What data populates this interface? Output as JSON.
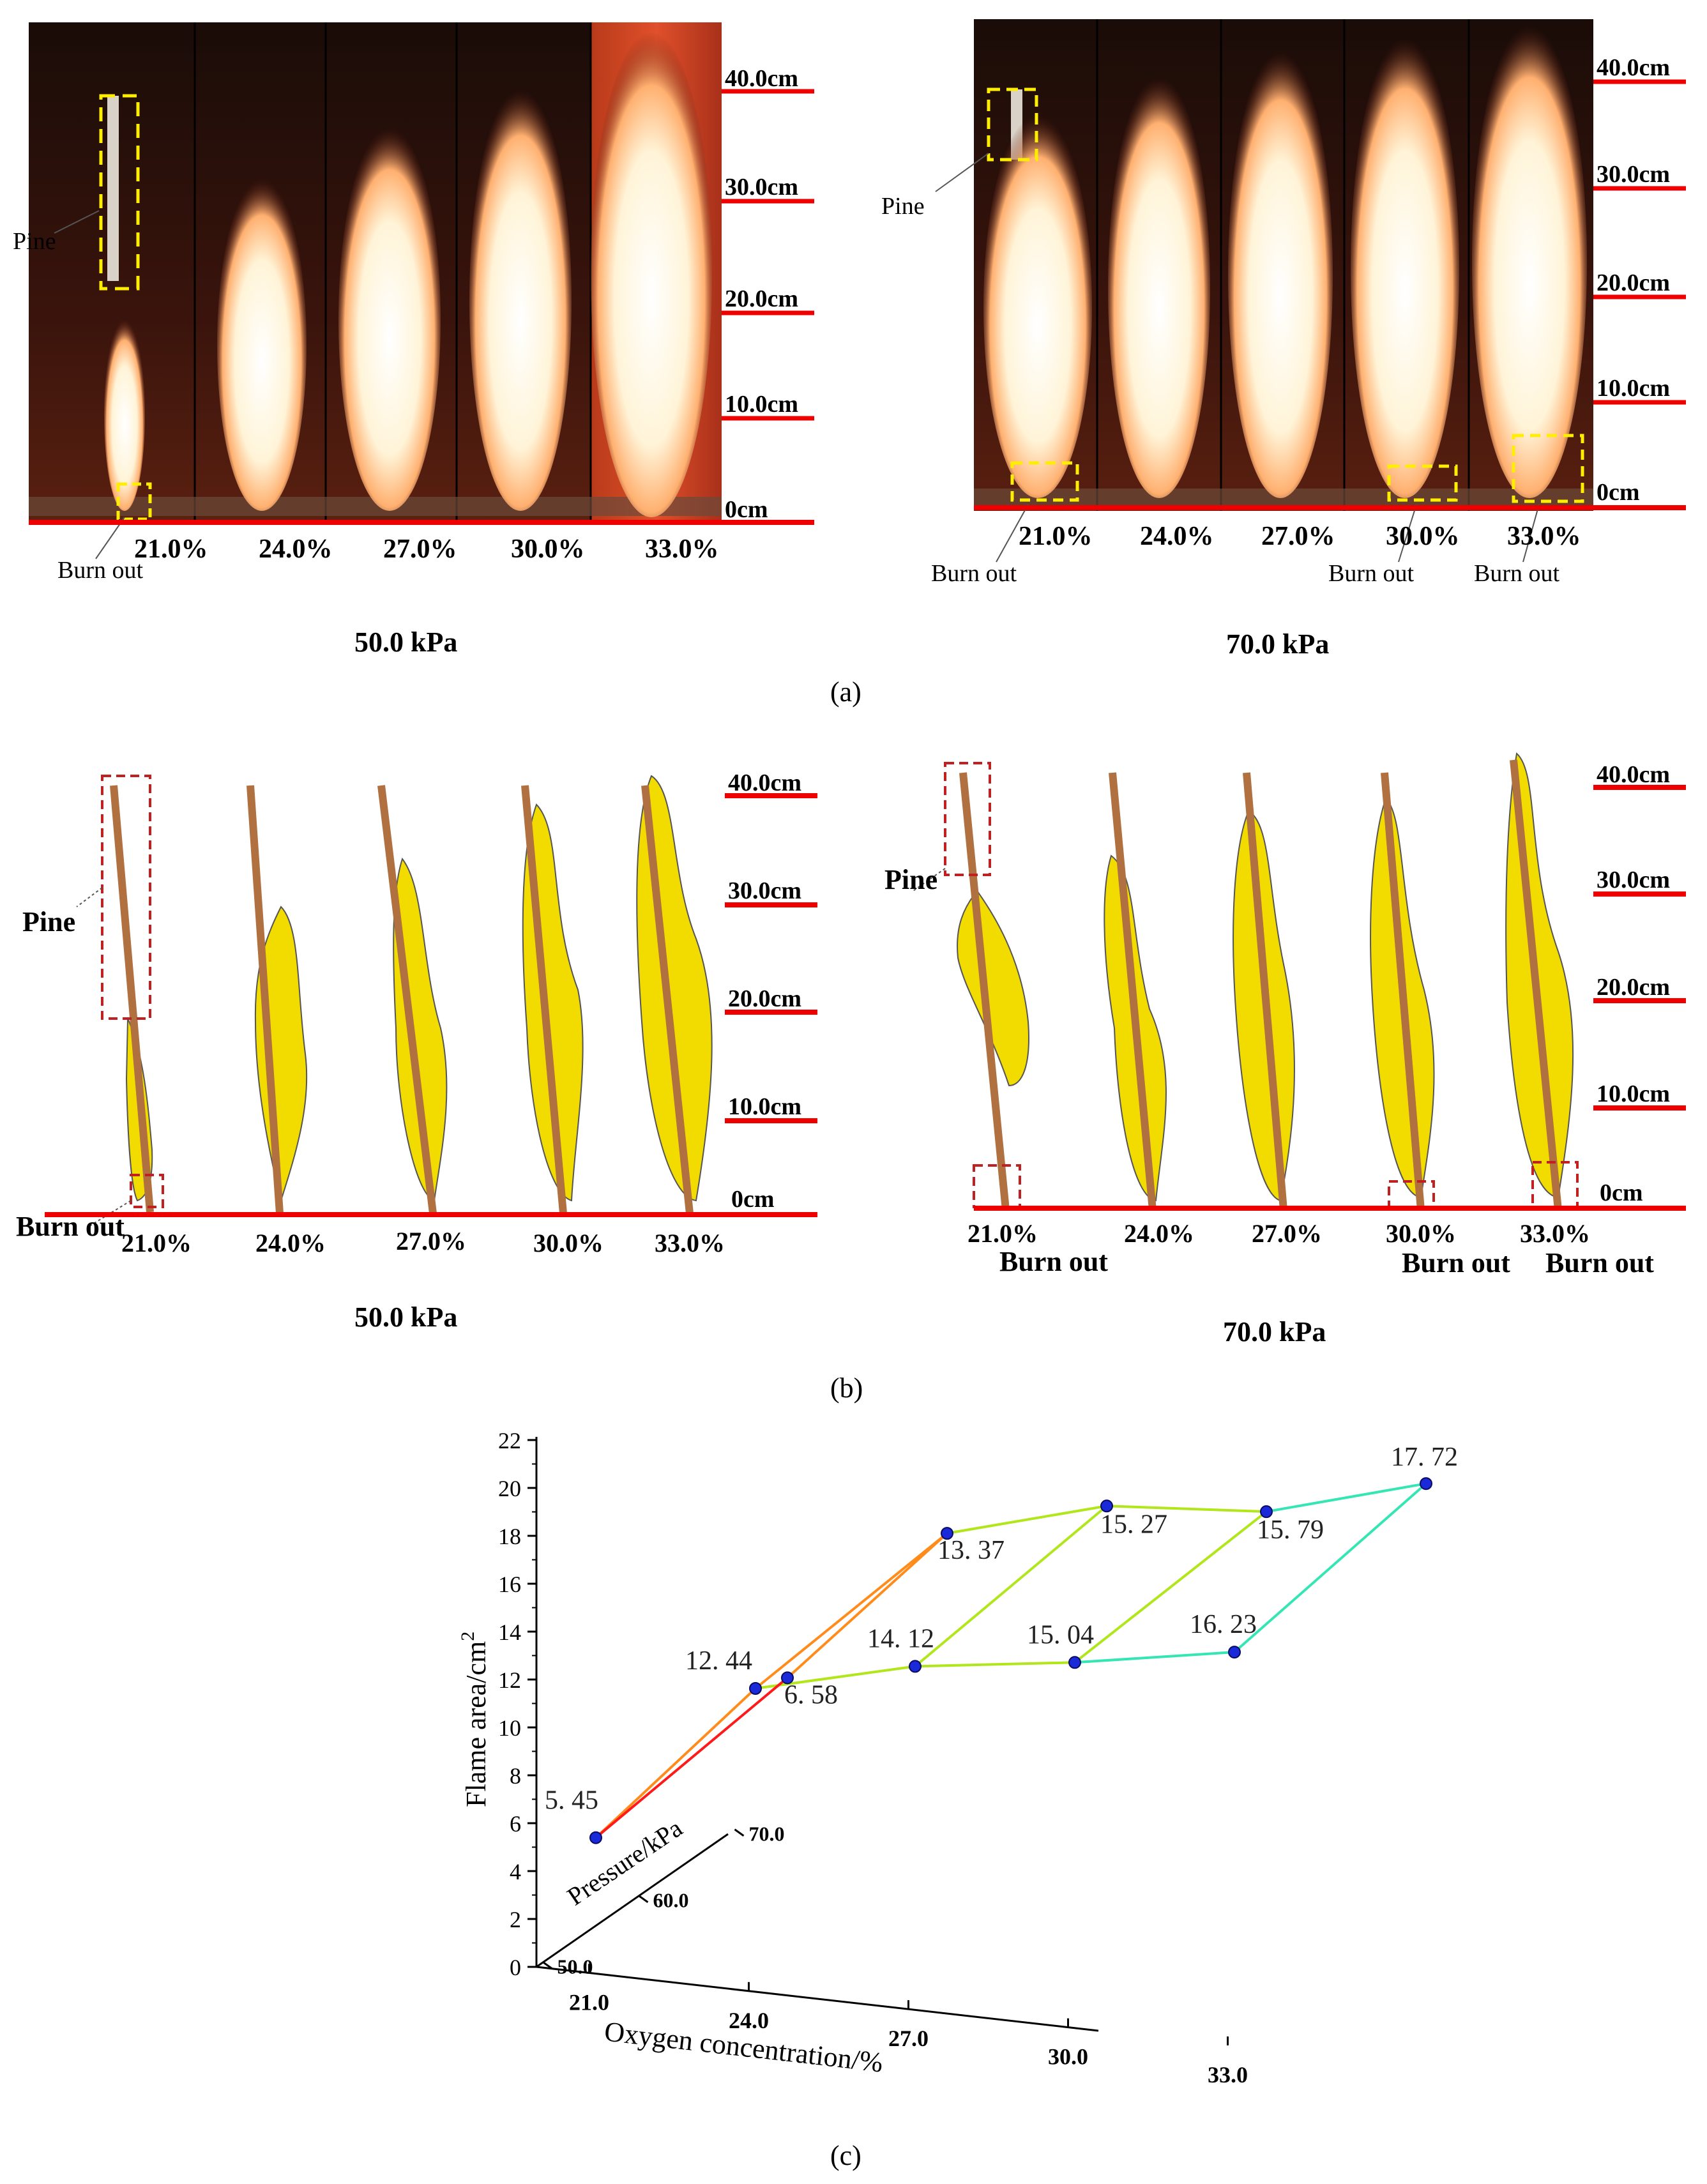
{
  "photo_panel": {
    "left": {
      "oxygen_labels": [
        "21.0%",
        "24.0%",
        "27.0%",
        "30.0%",
        "33.0%"
      ],
      "scale_labels": [
        "40.0cm",
        "30.0cm",
        "20.0cm",
        "10.0cm",
        "0cm"
      ],
      "pine_label": "Pine",
      "burnout_labels": [
        "Burn out"
      ],
      "pressure_label": "50.0 kPa"
    },
    "right": {
      "oxygen_labels": [
        "21.0%",
        "24.0%",
        "27.0%",
        "30.0%",
        "33.0%"
      ],
      "scale_labels": [
        "40.0cm",
        "30.0cm",
        "20.0cm",
        "10.0cm",
        "0cm"
      ],
      "pine_label": "Pine",
      "burnout_labels": [
        "Burn out",
        "Burn out",
        "Burn out"
      ],
      "pressure_label": "70.0 kPa"
    },
    "caption": "(a)"
  },
  "outline_panel": {
    "left": {
      "oxygen_labels": [
        "21.0%",
        "24.0%",
        "27.0%",
        "30.0%",
        "33.0%"
      ],
      "scale_labels": [
        "40.0cm",
        "30.0cm",
        "20.0cm",
        "10.0cm",
        "0cm"
      ],
      "pine_label": "Pine",
      "burnout_labels": [
        "Burn out"
      ],
      "pressure_label": "50.0 kPa"
    },
    "right": {
      "oxygen_labels": [
        "21.0%",
        "24.0%",
        "27.0%",
        "30.0%",
        "33.0%"
      ],
      "scale_labels": [
        "40.0cm",
        "30.0cm",
        "20.0cm",
        "10.0cm",
        "0cm"
      ],
      "pine_label": "Pine",
      "burnout_labels": [
        "Burn out",
        "Burn out",
        "Burn out"
      ],
      "pressure_label": "70.0 kPa"
    },
    "caption": "(b)"
  },
  "chart_data": {
    "type": "scatter3d",
    "ylabel": "Flame area/cm2",
    "ylabel_main": "Flame area/cm",
    "ylabel_sup": "2",
    "xlabel": "Oxygen concentration/%",
    "zlabel": "Pressure/kPa",
    "x_ticks": [
      "21.0",
      "24.0",
      "27.0",
      "30.0",
      "33.0"
    ],
    "z_ticks": [
      "50.0",
      "60.0",
      "70.0"
    ],
    "y_ticks": [
      "0",
      "2",
      "4",
      "6",
      "8",
      "10",
      "12",
      "14",
      "16",
      "18",
      "20",
      "22"
    ],
    "ylim": [
      0,
      22
    ],
    "series": [
      {
        "name": "50.0 kPa",
        "pressure": 50.0,
        "oxygen": [
          21.0,
          24.0,
          27.0,
          30.0,
          33.0
        ],
        "values": [
          5.45,
          12.44,
          14.12,
          15.04,
          16.23
        ]
      },
      {
        "name": "70.0 kPa",
        "pressure": 70.0,
        "oxygen": [
          21.0,
          24.0,
          27.0,
          30.0,
          33.0
        ],
        "values": [
          6.58,
          13.37,
          15.27,
          15.79,
          17.72
        ]
      }
    ],
    "point_labels": [
      {
        "text": "5. 45"
      },
      {
        "text": "12. 44"
      },
      {
        "text": "14. 12"
      },
      {
        "text": "15. 04"
      },
      {
        "text": "16. 23"
      },
      {
        "text": "6. 58"
      },
      {
        "text": "13. 37"
      },
      {
        "text": "15. 27"
      },
      {
        "text": "15. 79"
      },
      {
        "text": "17. 72"
      }
    ],
    "segment_colors": [
      "#ff1a1a",
      "#ff8c1a",
      "#b0e61a",
      "#b0e61a",
      "#33e6b3",
      "#33e6b3"
    ],
    "caption": "(c)"
  }
}
